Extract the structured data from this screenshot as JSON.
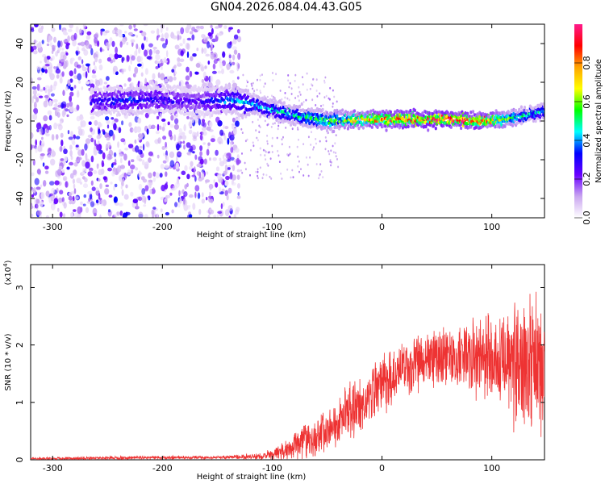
{
  "title": "GN04.2026.084.04.43.G05",
  "chart_data": [
    {
      "type": "heatmap",
      "xlabel": "Height of straight line (km)",
      "ylabel": "Frequency (Hz)",
      "xlim": [
        -320,
        148
      ],
      "ylim": [
        -50,
        50
      ],
      "xticks": [
        -300,
        -200,
        -100,
        0,
        100
      ],
      "yticks": [
        -40,
        -20,
        0,
        20,
        40
      ],
      "colorbar": {
        "label": "Normalized spectral amplitude",
        "range": [
          0.0,
          1.0
        ],
        "ticks": [
          0.0,
          0.2,
          0.4,
          0.6,
          0.8
        ],
        "colors": [
          "#ffffff",
          "#c9a6f0",
          "#6a00ff",
          "#0000ff",
          "#00ffff",
          "#00ff00",
          "#ffff00",
          "#ffa500",
          "#ff0000",
          "#ff1a8c"
        ]
      },
      "ridge": {
        "x": [
          -260,
          -230,
          -200,
          -170,
          -140,
          -120,
          -100,
          -80,
          -60,
          -50,
          -30,
          0,
          30,
          60,
          90,
          110,
          130,
          148
        ],
        "frequency": [
          10,
          11,
          11,
          10,
          11,
          9,
          6,
          3,
          1,
          0,
          1,
          1,
          1,
          1,
          0,
          1,
          3,
          5
        ],
        "amplitude": [
          0.3,
          0.35,
          0.3,
          0.25,
          0.4,
          0.45,
          0.45,
          0.5,
          0.55,
          0.6,
          0.7,
          0.85,
          0.9,
          0.95,
          0.9,
          0.7,
          0.5,
          0.45
        ]
      }
    },
    {
      "type": "line",
      "xlabel": "Height of straight line (km)",
      "ylabel": "SNR (10 * v/v)",
      "yscale_label": "(x10",
      "yscale_exp": "4",
      "xlim": [
        -320,
        148
      ],
      "ylim": [
        0,
        3.4
      ],
      "xticks": [
        -300,
        -200,
        -100,
        0,
        100
      ],
      "yticks": [
        0,
        1,
        2,
        3
      ],
      "color": "#ee3333",
      "envelope": {
        "x": [
          -320,
          -250,
          -200,
          -150,
          -110,
          -90,
          -70,
          -50,
          -30,
          -10,
          10,
          30,
          50,
          70,
          90,
          110,
          130,
          148
        ],
        "mean": [
          0.02,
          0.03,
          0.04,
          0.04,
          0.06,
          0.15,
          0.3,
          0.5,
          0.8,
          1.1,
          1.5,
          1.7,
          1.8,
          1.8,
          1.75,
          1.7,
          1.6,
          1.6
        ],
        "spread": [
          0.02,
          0.03,
          0.03,
          0.03,
          0.05,
          0.15,
          0.3,
          0.4,
          0.5,
          0.5,
          0.5,
          0.5,
          0.5,
          0.55,
          0.7,
          0.9,
          1.2,
          1.3
        ]
      }
    }
  ]
}
